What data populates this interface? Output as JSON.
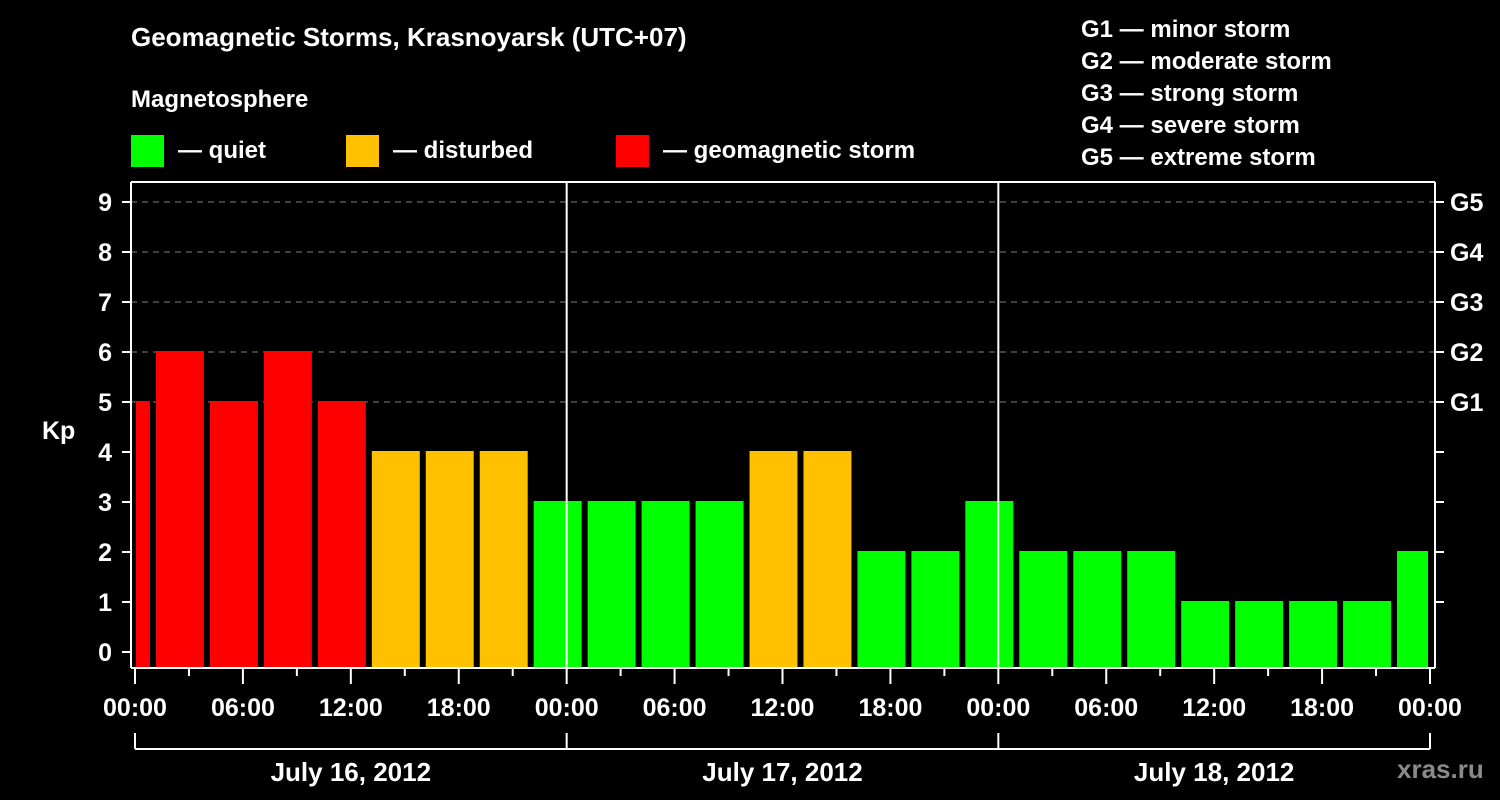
{
  "header": {
    "title": "Geomagnetic Storms, Krasnoyarsk (UTC+07)",
    "subtitle": "Magnetosphere"
  },
  "legend": [
    {
      "label": "— quiet",
      "color": "#00ff00"
    },
    {
      "label": "— disturbed",
      "color": "#ffc000"
    },
    {
      "label": "— geomagnetic storm",
      "color": "#ff0000"
    }
  ],
  "g_scale_legend": [
    "G1 — minor storm",
    "G2 — moderate storm",
    "G3 — strong storm",
    "G4 — severe storm",
    "G5 — extreme storm"
  ],
  "watermark": "xras.ru",
  "colors": {
    "quiet": "#00ff00",
    "disturbed": "#ffc000",
    "storm": "#ff0000",
    "background": "#000000",
    "axis": "#ffffff",
    "grid": "#808080"
  },
  "chart_data": {
    "type": "bar",
    "title": "Geomagnetic Storms, Krasnoyarsk (UTC+07)",
    "ylabel": "Kp",
    "xlabel": "",
    "ylim": [
      0,
      9
    ],
    "yticks": [
      0,
      1,
      2,
      3,
      4,
      5,
      6,
      7,
      8,
      9
    ],
    "right_axis_labels": [
      {
        "kp": 5,
        "label": "G1"
      },
      {
        "kp": 6,
        "label": "G2"
      },
      {
        "kp": 7,
        "label": "G3"
      },
      {
        "kp": 8,
        "label": "G4"
      },
      {
        "kp": 9,
        "label": "G5"
      }
    ],
    "grid": {
      "horizontal_dashed_at": [
        5,
        6,
        7,
        8,
        9
      ]
    },
    "x_range_hours": [
      0,
      72
    ],
    "xtick_labels": [
      "00:00",
      "06:00",
      "12:00",
      "18:00",
      "00:00",
      "06:00",
      "12:00",
      "18:00",
      "00:00",
      "06:00",
      "12:00",
      "18:00",
      "00:00"
    ],
    "date_groups": [
      "July 16, 2012",
      "July 17, 2012",
      "July 18, 2012"
    ],
    "bar_interval_hours": 3,
    "bar_offset_hours": -2,
    "categories": [
      "-2h",
      "1h",
      "4h",
      "7h",
      "10h",
      "13h",
      "16h",
      "19h",
      "22h",
      "25h",
      "28h",
      "31h",
      "34h",
      "37h",
      "40h",
      "43h",
      "46h",
      "49h",
      "52h",
      "55h",
      "58h",
      "61h",
      "64h",
      "67h",
      "70h"
    ],
    "values": [
      5,
      6,
      5,
      6,
      5,
      4,
      4,
      4,
      3,
      3,
      3,
      3,
      4,
      4,
      2,
      2,
      3,
      2,
      2,
      2,
      1,
      1,
      1,
      1,
      2
    ],
    "color_thresholds": {
      "quiet": "Kp <= 3",
      "disturbed": "Kp = 4",
      "storm": "Kp >= 5"
    },
    "legend_position": "top"
  }
}
